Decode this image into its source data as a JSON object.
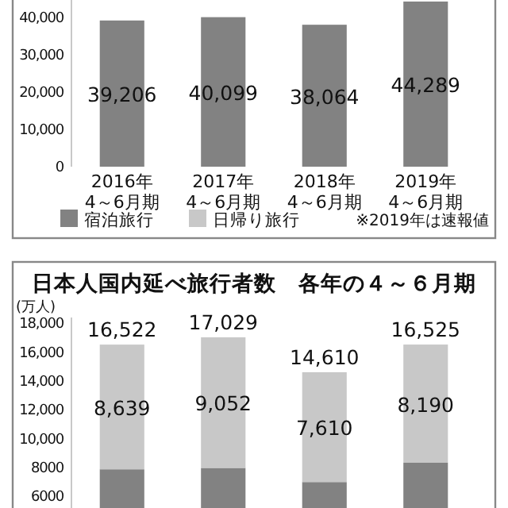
{
  "chart_data": [
    {
      "type": "bar",
      "stacked": true,
      "categories": [
        "2016年\n4～6月期",
        "2017年\n4～6月期",
        "2018年\n4～6月期",
        "2019年\n4～6月期"
      ],
      "series": [
        {
          "name": "宿泊旅行",
          "color": "#828282",
          "values": [
            39206,
            40099,
            38064,
            44289
          ],
          "value_labels": [
            "39,206",
            "40,099",
            "38,064",
            "44,289"
          ]
        },
        {
          "name": "日帰り旅行",
          "color": "#c8c8c8",
          "values": [
            null,
            null,
            null,
            null
          ]
        }
      ],
      "ylim": [
        0,
        44700
      ],
      "yticks": [
        0,
        {
          "value": 10000,
          "label": "10,000"
        },
        {
          "value": 20000,
          "label": "20,000"
        },
        {
          "value": 30000,
          "label": "30,000"
        },
        {
          "value": 40000,
          "label": "40,000"
        }
      ],
      "legend": "bottom",
      "annotations": [
        "※2019年は速報値"
      ]
    },
    {
      "type": "bar",
      "stacked": true,
      "title": "日本人国内延べ旅行者数　各年の４～６月期",
      "ylabel": "(万人)",
      "categories": [
        null,
        null,
        null,
        null
      ],
      "series": [
        {
          "color": "#828282",
          "values": [
            7883,
            7977,
            7000,
            8335
          ]
        },
        {
          "color": "#c8c8c8",
          "values": [
            8639,
            9052,
            7610,
            8190
          ],
          "value_labels": [
            "8,639",
            "9,052",
            "7,610",
            "8,190"
          ]
        }
      ],
      "totals": [
        "16,522",
        "17,029",
        "14,610",
        "16,525"
      ],
      "ylim": [
        5200,
        18400
      ],
      "yticks": [
        6000,
        8000,
        {
          "value": 10000,
          "label": "10,000"
        },
        {
          "value": 12000,
          "label": "12,000"
        },
        {
          "value": 14000,
          "label": "14,000"
        },
        {
          "value": 16000,
          "label": "16,000"
        },
        {
          "value": 18000,
          "label": "18,000"
        }
      ]
    }
  ]
}
